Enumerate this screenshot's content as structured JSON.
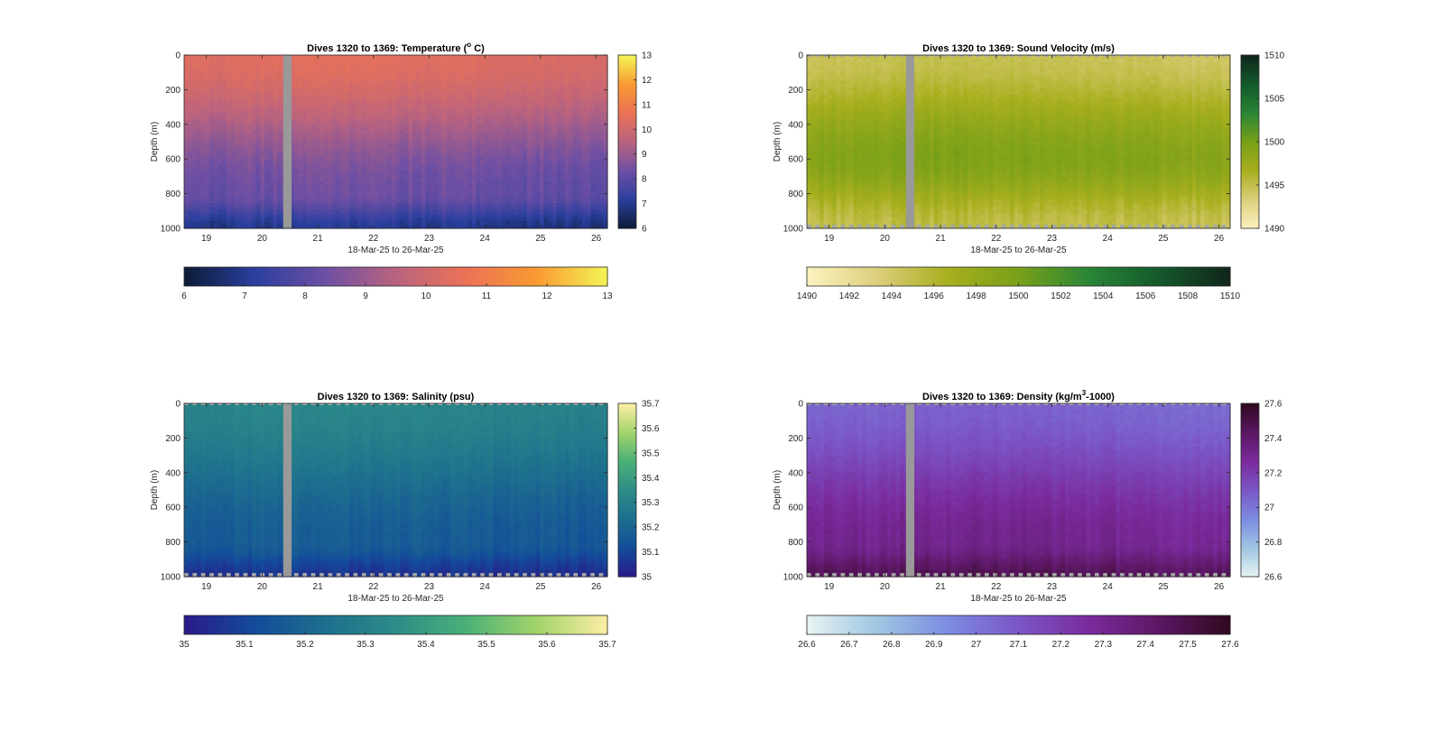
{
  "chart_data": [
    {
      "type": "heatmap",
      "title": "Dives 1320 to 1369: Temperature (°C)",
      "title_parts": [
        "Dives 1320 to 1369: Temperature (",
        "o",
        " C)"
      ],
      "xlabel": "18-Mar-25 to 26-Mar-25",
      "ylabel": "Depth (m)",
      "xlim": [
        18.6,
        26.2
      ],
      "ylim": [
        0,
        1000
      ],
      "y_reversed": true,
      "xticks": [
        "19",
        "20",
        "21",
        "22",
        "23",
        "24",
        "25",
        "26"
      ],
      "yticks": [
        "0",
        "200",
        "400",
        "600",
        "800",
        "1000"
      ],
      "gap": [
        20.38,
        20.53
      ],
      "clim": [
        6,
        13
      ],
      "colormap": [
        "#0b1b36",
        "#2b3f9e",
        "#6d4fa4",
        "#b9637f",
        "#eb7256",
        "#f99a32",
        "#f5f556"
      ],
      "cbar_ticks": [
        "6",
        "7",
        "8",
        "9",
        "10",
        "11",
        "12",
        "13"
      ],
      "hcbar_ticks": [
        "6",
        "7",
        "8",
        "9",
        "10",
        "11",
        "12",
        "13"
      ],
      "profile": {
        "surface": 10.3,
        "depth_800": 8.2,
        "bottom": 6.9
      },
      "bottom_mask": false
    },
    {
      "type": "heatmap",
      "title": "Dives 1320 to 1369: Sound Velocity (m/s)",
      "title_parts": [
        "Dives 1320 to 1369: Sound Velocity (m/s)",
        "",
        ""
      ],
      "xlabel": "18-Mar-25 to 26-Mar-25",
      "ylabel": "Depth (m)",
      "xlim": [
        18.6,
        26.2
      ],
      "ylim": [
        0,
        1000
      ],
      "y_reversed": true,
      "xticks": [
        "19",
        "20",
        "21",
        "22",
        "23",
        "24",
        "25",
        "26"
      ],
      "yticks": [
        "0",
        "200",
        "400",
        "600",
        "800",
        "1000"
      ],
      "gap": [
        20.38,
        20.53
      ],
      "clim": [
        1490,
        1510
      ],
      "colormap": [
        "#fbf3c0",
        "#dcce7c",
        "#a8af1e",
        "#79a018",
        "#2a8636",
        "#14592c",
        "#10261a"
      ],
      "cbar_ticks": [
        "1490",
        "1495",
        "1500",
        "1505",
        "1510"
      ],
      "hcbar_ticks": [
        "1490",
        "1492",
        "1494",
        "1496",
        "1498",
        "1500",
        "1502",
        "1504",
        "1506",
        "1508",
        "1510"
      ],
      "profile": {
        "surface": 1494.5,
        "depth_600": 1499.2,
        "bottom": 1495.0
      },
      "bottom_mask": true
    },
    {
      "type": "heatmap",
      "title": "Dives 1320 to 1369: Salinity (psu)",
      "title_parts": [
        "Dives 1320 to 1369: Salinity (psu)",
        "",
        ""
      ],
      "xlabel": "18-Mar-25 to 26-Mar-25",
      "ylabel": "Depth (m)",
      "xlim": [
        18.6,
        26.2
      ],
      "ylim": [
        0,
        1000
      ],
      "y_reversed": true,
      "xticks": [
        "19",
        "20",
        "21",
        "22",
        "23",
        "24",
        "25",
        "26"
      ],
      "yticks": [
        "0",
        "200",
        "400",
        "600",
        "800",
        "1000"
      ],
      "gap": [
        20.38,
        20.53
      ],
      "clim": [
        35,
        35.7
      ],
      "colormap": [
        "#2a1a8a",
        "#134c9a",
        "#1d6f8e",
        "#2d8c88",
        "#4ab077",
        "#a2d46a",
        "#fdeea6"
      ],
      "cbar_ticks": [
        "35",
        "35.1",
        "35.2",
        "35.3",
        "35.4",
        "35.5",
        "35.6",
        "35.7"
      ],
      "hcbar_ticks": [
        "35",
        "35.1",
        "35.2",
        "35.3",
        "35.4",
        "35.5",
        "35.6",
        "35.7"
      ],
      "profile": {
        "surface": 35.31,
        "depth_800": 35.16,
        "bottom": 35.05
      },
      "bottom_mask": true
    },
    {
      "type": "heatmap",
      "title": "Dives 1320 to 1369: Density (kg/m³-1000)",
      "title_parts": [
        "Dives 1320 to 1369: Density (kg/m",
        "3",
        "-1000)"
      ],
      "xlabel": "18-Mar-25 to 26-Mar-25",
      "ylabel": "Depth (m)",
      "xlim": [
        18.6,
        26.2
      ],
      "ylim": [
        0,
        1000
      ],
      "y_reversed": true,
      "xticks": [
        "19",
        "20",
        "21",
        "22",
        "23",
        "24",
        "25",
        "26"
      ],
      "yticks": [
        "0",
        "200",
        "400",
        "600",
        "800",
        "1000"
      ],
      "gap": [
        20.38,
        20.53
      ],
      "clim": [
        26.6,
        27.6
      ],
      "colormap": [
        "#e8f4f2",
        "#9fc6e2",
        "#7c8ce1",
        "#7b56c6",
        "#7a2b9d",
        "#5b1763",
        "#30081f"
      ],
      "cbar_ticks": [
        "26.6",
        "26.8",
        "27",
        "27.2",
        "27.4",
        "27.6"
      ],
      "hcbar_ticks": [
        "26.6",
        "26.7",
        "26.8",
        "26.9",
        "27",
        "27.1",
        "27.2",
        "27.3",
        "27.4",
        "27.5",
        "27.6"
      ],
      "profile": {
        "surface": 27.05,
        "depth_800": 27.3,
        "bottom": 27.45
      },
      "bottom_mask": true
    }
  ]
}
